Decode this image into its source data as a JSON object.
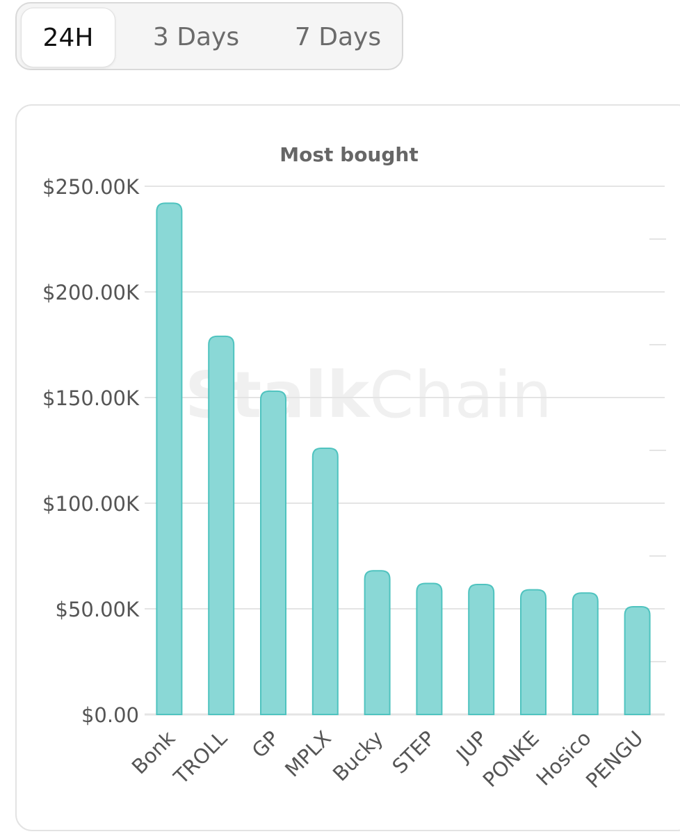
{
  "tabs": [
    {
      "label": "24H",
      "active": true
    },
    {
      "label": "3 Days",
      "active": false
    },
    {
      "label": "7 Days",
      "active": false
    }
  ],
  "watermark": {
    "bold_part": "Stalk",
    "normal_part": "Chain"
  },
  "colors": {
    "bar_fill": "#8ad8d6",
    "bar_stroke": "#4fc3bf",
    "grid": "#e4e4e4"
  },
  "chart_data": {
    "type": "bar",
    "title": "Most bought",
    "xlabel": "",
    "ylabel": "",
    "categories": [
      "Bonk",
      "TROLL",
      "GP",
      "MPLX",
      "Bucky",
      "STEP",
      "JUP",
      "PONKE",
      "Hosico",
      "PENGU"
    ],
    "values": [
      242000,
      179000,
      153000,
      126000,
      68000,
      62000,
      61500,
      59000,
      57500,
      51000
    ],
    "ylim": [
      0,
      250000
    ],
    "y_ticks": [
      0,
      50000,
      100000,
      150000,
      200000,
      250000
    ],
    "y_tick_labels": [
      "$0.00",
      "$50.00K",
      "$100.00K",
      "$150.00K",
      "$200.00K",
      "$250.00K"
    ],
    "grid": true,
    "legend": "none"
  }
}
